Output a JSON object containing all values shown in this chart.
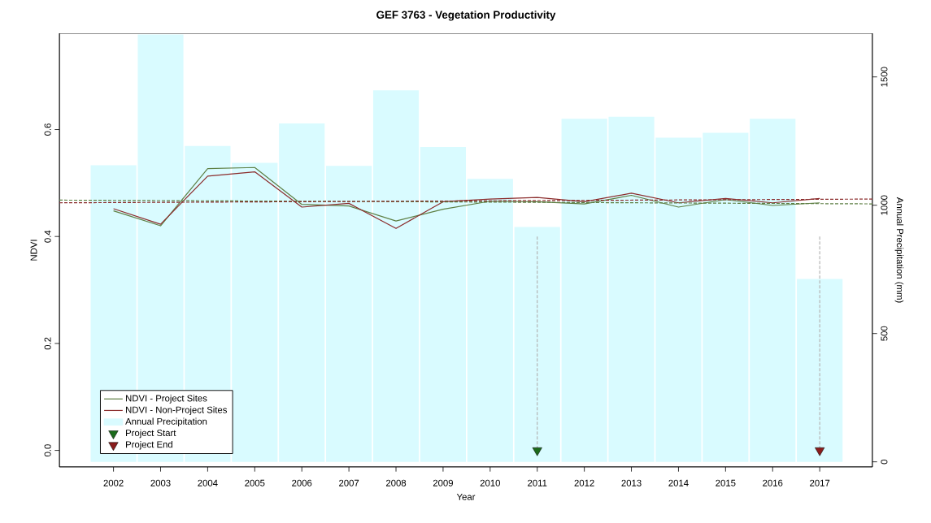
{
  "chart_data": {
    "type": "line",
    "title": "GEF 3763 - Vegetation Productivity",
    "xlabel": "Year",
    "ylabel": "NDVI",
    "y2label": "Annual Precipitation (mm)",
    "x": [
      2002,
      2003,
      2004,
      2005,
      2006,
      2007,
      2008,
      2009,
      2010,
      2011,
      2012,
      2013,
      2014,
      2015,
      2016,
      2017
    ],
    "xlim": [
      2000.85,
      2018.12
    ],
    "xticks": [
      2002,
      2003,
      2004,
      2005,
      2006,
      2007,
      2008,
      2009,
      2010,
      2011,
      2012,
      2013,
      2014,
      2015,
      2016,
      2017
    ],
    "ylim": [
      -0.031,
      0.78
    ],
    "yticks": [
      {
        "value": 0,
        "label": "0.0"
      },
      {
        "value": 0.2,
        "label": "0.2"
      },
      {
        "value": 0.4,
        "label": "0.4"
      },
      {
        "value": 0.6,
        "label": "0.6"
      }
    ],
    "y2lim": [
      -20,
      1670
    ],
    "y2ticks": [
      0,
      500,
      1000,
      1500
    ],
    "grid": false,
    "legend": "bottom left",
    "series": [
      {
        "name": "NDVI - Project Sites",
        "color": "#5e7f44",
        "values": [
          0.448,
          0.42,
          0.527,
          0.529,
          0.46,
          0.457,
          0.429,
          0.451,
          0.466,
          0.465,
          0.461,
          0.477,
          0.455,
          0.469,
          0.458,
          0.463
        ]
      },
      {
        "name": "NDVI - Non-Project Sites",
        "color": "#8b2c2c",
        "values": [
          0.452,
          0.423,
          0.513,
          0.521,
          0.455,
          0.462,
          0.415,
          0.465,
          0.47,
          0.473,
          0.465,
          0.481,
          0.463,
          0.471,
          0.463,
          0.471
        ]
      },
      {
        "type": "bar",
        "name": "Annual Precipitation",
        "color": "#d9fbff",
        "axis": "y2",
        "values": [
          1156,
          1665,
          1231,
          1165,
          1319,
          1153,
          1448,
          1227,
          1103,
          915,
          1337,
          1345,
          1263,
          1282,
          1337,
          713
        ]
      },
      {
        "type": "scatter",
        "name": "Project Start",
        "color": "#1b6b1b",
        "marker": "triangle",
        "x": [
          2011
        ],
        "values": [
          0
        ]
      },
      {
        "type": "scatter",
        "name": "Project End",
        "color": "#8b1c1c",
        "marker": "triangle",
        "x": [
          2017
        ],
        "values": [
          0
        ]
      },
      {
        "type": "line",
        "color": "#5e7f44",
        "line_style": "dashed",
        "x": [
          2000.85,
          2018.12
        ],
        "values": [
          0.468,
          0.461
        ]
      },
      {
        "type": "line",
        "color": "#8b2c2c",
        "line_style": "dashed",
        "x": [
          2000.85,
          2018.12
        ],
        "values": [
          0.463,
          0.47
        ]
      },
      {
        "type": "line",
        "color": "#b4b4b4",
        "line_style": "dashed",
        "x": [
          2011,
          2011
        ],
        "values": [
          0.4,
          0
        ]
      },
      {
        "type": "line",
        "color": "#b4b4b4",
        "line_style": "dashed",
        "x": [
          2017,
          2017
        ],
        "values": [
          0.4,
          0
        ]
      }
    ]
  }
}
